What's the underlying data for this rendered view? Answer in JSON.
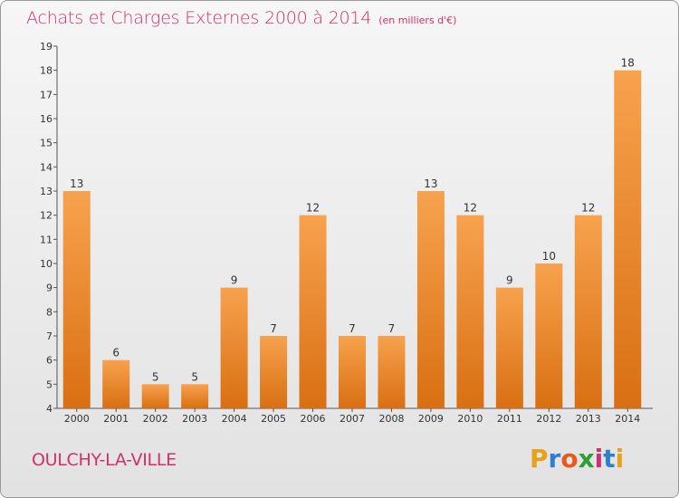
{
  "header": {
    "title": "Achats et Charges Externes 2000 à 2014",
    "unit": "(en milliers d'€)"
  },
  "footer": {
    "town": "OULCHY-LA-VILLE",
    "logo_letters": [
      "P",
      "r",
      "o",
      "x",
      "i",
      "t",
      "i"
    ],
    "logo_colors": [
      "#e8a21a",
      "#2e7fd0",
      "#e85a1a",
      "#2e9e3a",
      "#d0306e",
      "#2e7fd0",
      "#e8a21a"
    ]
  },
  "colors": {
    "bar_light": "#f7a24e",
    "bar_dark": "#d96f12",
    "text": "#333333",
    "accent": "#d0306e"
  },
  "chart_data": {
    "type": "bar",
    "title": "Achats et Charges Externes 2000 à 2014",
    "subtitle": "(en milliers d'€)",
    "xlabel": "",
    "ylabel": "",
    "categories": [
      "2000",
      "2001",
      "2002",
      "2003",
      "2004",
      "2005",
      "2006",
      "2007",
      "2008",
      "2009",
      "2010",
      "2011",
      "2012",
      "2013",
      "2014"
    ],
    "values": [
      13,
      6,
      5,
      5,
      9,
      7,
      12,
      7,
      7,
      13,
      12,
      9,
      10,
      12,
      18
    ],
    "ylim": [
      4,
      19
    ],
    "yticks": [
      4,
      5,
      6,
      7,
      8,
      9,
      10,
      11,
      12,
      13,
      14,
      15,
      16,
      17,
      18,
      19
    ],
    "grid": false,
    "data_labels": true
  }
}
